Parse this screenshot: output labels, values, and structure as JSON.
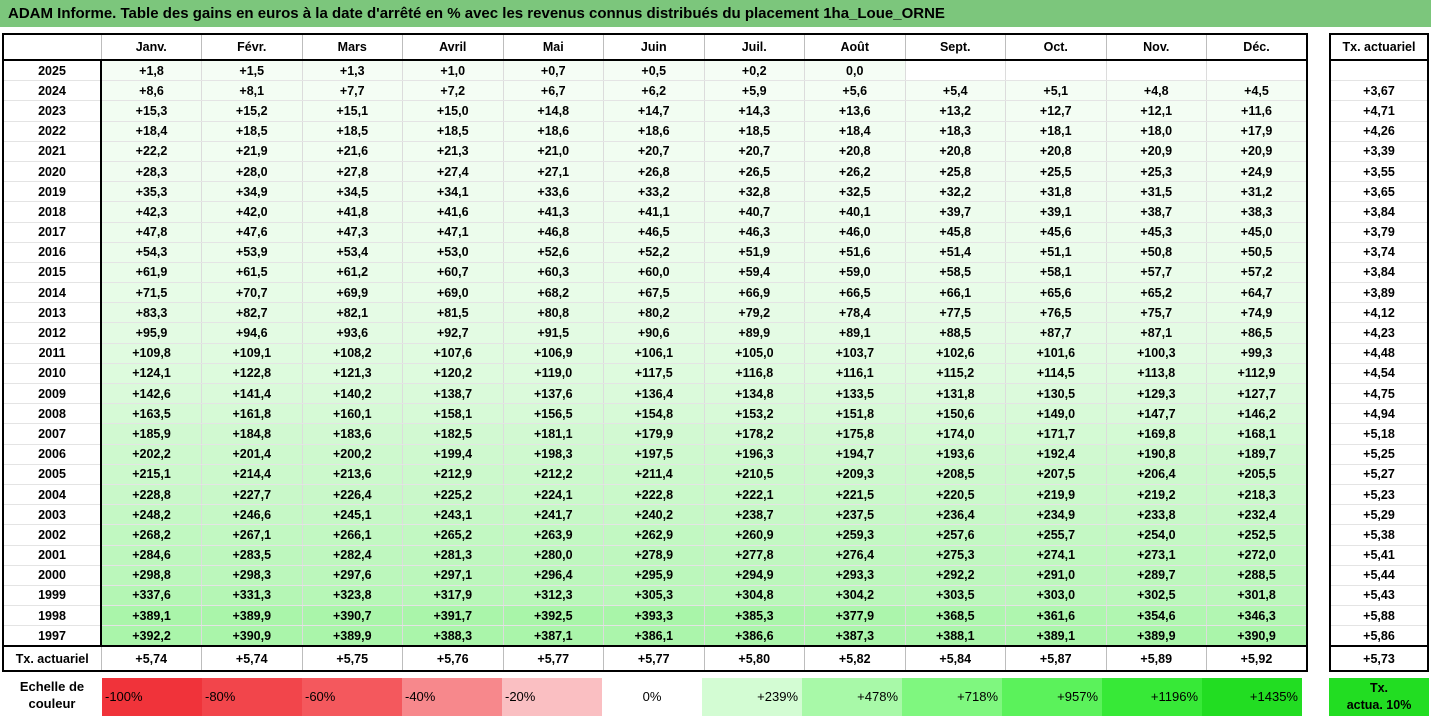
{
  "title": "ADAM Informe. Table des gains en euros à la date d'arrêté en % avec les revenus connus distribués du placement 1ha_Loue_ORNE",
  "months": [
    "Janv.",
    "Févr.",
    "Mars",
    "Avril",
    "Mai",
    "Juin",
    "Juil.",
    "Août",
    "Sept.",
    "Oct.",
    "Nov.",
    "Déc."
  ],
  "side_header": "Tx. actuariel",
  "rows": [
    {
      "year": "2025",
      "vals": [
        "+1,8",
        "+1,5",
        "+1,3",
        "+1,0",
        "+0,7",
        "+0,5",
        "+0,2",
        "0,0",
        "",
        "",
        "",
        ""
      ],
      "act": ""
    },
    {
      "year": "2024",
      "vals": [
        "+8,6",
        "+8,1",
        "+7,7",
        "+7,2",
        "+6,7",
        "+6,2",
        "+5,9",
        "+5,6",
        "+5,4",
        "+5,1",
        "+4,8",
        "+4,5"
      ],
      "act": "+3,67"
    },
    {
      "year": "2023",
      "vals": [
        "+15,3",
        "+15,2",
        "+15,1",
        "+15,0",
        "+14,8",
        "+14,7",
        "+14,3",
        "+13,6",
        "+13,2",
        "+12,7",
        "+12,1",
        "+11,6"
      ],
      "act": "+4,71"
    },
    {
      "year": "2022",
      "vals": [
        "+18,4",
        "+18,5",
        "+18,5",
        "+18,5",
        "+18,6",
        "+18,6",
        "+18,5",
        "+18,4",
        "+18,3",
        "+18,1",
        "+18,0",
        "+17,9"
      ],
      "act": "+4,26"
    },
    {
      "year": "2021",
      "vals": [
        "+22,2",
        "+21,9",
        "+21,6",
        "+21,3",
        "+21,0",
        "+20,7",
        "+20,7",
        "+20,8",
        "+20,8",
        "+20,8",
        "+20,9",
        "+20,9"
      ],
      "act": "+3,39"
    },
    {
      "year": "2020",
      "vals": [
        "+28,3",
        "+28,0",
        "+27,8",
        "+27,4",
        "+27,1",
        "+26,8",
        "+26,5",
        "+26,2",
        "+25,8",
        "+25,5",
        "+25,3",
        "+24,9"
      ],
      "act": "+3,55"
    },
    {
      "year": "2019",
      "vals": [
        "+35,3",
        "+34,9",
        "+34,5",
        "+34,1",
        "+33,6",
        "+33,2",
        "+32,8",
        "+32,5",
        "+32,2",
        "+31,8",
        "+31,5",
        "+31,2"
      ],
      "act": "+3,65"
    },
    {
      "year": "2018",
      "vals": [
        "+42,3",
        "+42,0",
        "+41,8",
        "+41,6",
        "+41,3",
        "+41,1",
        "+40,7",
        "+40,1",
        "+39,7",
        "+39,1",
        "+38,7",
        "+38,3"
      ],
      "act": "+3,84"
    },
    {
      "year": "2017",
      "vals": [
        "+47,8",
        "+47,6",
        "+47,3",
        "+47,1",
        "+46,8",
        "+46,5",
        "+46,3",
        "+46,0",
        "+45,8",
        "+45,6",
        "+45,3",
        "+45,0"
      ],
      "act": "+3,79"
    },
    {
      "year": "2016",
      "vals": [
        "+54,3",
        "+53,9",
        "+53,4",
        "+53,0",
        "+52,6",
        "+52,2",
        "+51,9",
        "+51,6",
        "+51,4",
        "+51,1",
        "+50,8",
        "+50,5"
      ],
      "act": "+3,74"
    },
    {
      "year": "2015",
      "vals": [
        "+61,9",
        "+61,5",
        "+61,2",
        "+60,7",
        "+60,3",
        "+60,0",
        "+59,4",
        "+59,0",
        "+58,5",
        "+58,1",
        "+57,7",
        "+57,2"
      ],
      "act": "+3,84"
    },
    {
      "year": "2014",
      "vals": [
        "+71,5",
        "+70,7",
        "+69,9",
        "+69,0",
        "+68,2",
        "+67,5",
        "+66,9",
        "+66,5",
        "+66,1",
        "+65,6",
        "+65,2",
        "+64,7"
      ],
      "act": "+3,89"
    },
    {
      "year": "2013",
      "vals": [
        "+83,3",
        "+82,7",
        "+82,1",
        "+81,5",
        "+80,8",
        "+80,2",
        "+79,2",
        "+78,4",
        "+77,5",
        "+76,5",
        "+75,7",
        "+74,9"
      ],
      "act": "+4,12"
    },
    {
      "year": "2012",
      "vals": [
        "+95,9",
        "+94,6",
        "+93,6",
        "+92,7",
        "+91,5",
        "+90,6",
        "+89,9",
        "+89,1",
        "+88,5",
        "+87,7",
        "+87,1",
        "+86,5"
      ],
      "act": "+4,23"
    },
    {
      "year": "2011",
      "vals": [
        "+109,8",
        "+109,1",
        "+108,2",
        "+107,6",
        "+106,9",
        "+106,1",
        "+105,0",
        "+103,7",
        "+102,6",
        "+101,6",
        "+100,3",
        "+99,3"
      ],
      "act": "+4,48"
    },
    {
      "year": "2010",
      "vals": [
        "+124,1",
        "+122,8",
        "+121,3",
        "+120,2",
        "+119,0",
        "+117,5",
        "+116,8",
        "+116,1",
        "+115,2",
        "+114,5",
        "+113,8",
        "+112,9"
      ],
      "act": "+4,54"
    },
    {
      "year": "2009",
      "vals": [
        "+142,6",
        "+141,4",
        "+140,2",
        "+138,7",
        "+137,6",
        "+136,4",
        "+134,8",
        "+133,5",
        "+131,8",
        "+130,5",
        "+129,3",
        "+127,7"
      ],
      "act": "+4,75"
    },
    {
      "year": "2008",
      "vals": [
        "+163,5",
        "+161,8",
        "+160,1",
        "+158,1",
        "+156,5",
        "+154,8",
        "+153,2",
        "+151,8",
        "+150,6",
        "+149,0",
        "+147,7",
        "+146,2"
      ],
      "act": "+4,94"
    },
    {
      "year": "2007",
      "vals": [
        "+185,9",
        "+184,8",
        "+183,6",
        "+182,5",
        "+181,1",
        "+179,9",
        "+178,2",
        "+175,8",
        "+174,0",
        "+171,7",
        "+169,8",
        "+168,1"
      ],
      "act": "+5,18"
    },
    {
      "year": "2006",
      "vals": [
        "+202,2",
        "+201,4",
        "+200,2",
        "+199,4",
        "+198,3",
        "+197,5",
        "+196,3",
        "+194,7",
        "+193,6",
        "+192,4",
        "+190,8",
        "+189,7"
      ],
      "act": "+5,25"
    },
    {
      "year": "2005",
      "vals": [
        "+215,1",
        "+214,4",
        "+213,6",
        "+212,9",
        "+212,2",
        "+211,4",
        "+210,5",
        "+209,3",
        "+208,5",
        "+207,5",
        "+206,4",
        "+205,5"
      ],
      "act": "+5,27"
    },
    {
      "year": "2004",
      "vals": [
        "+228,8",
        "+227,7",
        "+226,4",
        "+225,2",
        "+224,1",
        "+222,8",
        "+222,1",
        "+221,5",
        "+220,5",
        "+219,9",
        "+219,2",
        "+218,3"
      ],
      "act": "+5,23"
    },
    {
      "year": "2003",
      "vals": [
        "+248,2",
        "+246,6",
        "+245,1",
        "+243,1",
        "+241,7",
        "+240,2",
        "+238,7",
        "+237,5",
        "+236,4",
        "+234,9",
        "+233,8",
        "+232,4"
      ],
      "act": "+5,29"
    },
    {
      "year": "2002",
      "vals": [
        "+268,2",
        "+267,1",
        "+266,1",
        "+265,2",
        "+263,9",
        "+262,9",
        "+260,9",
        "+259,3",
        "+257,6",
        "+255,7",
        "+254,0",
        "+252,5"
      ],
      "act": "+5,38"
    },
    {
      "year": "2001",
      "vals": [
        "+284,6",
        "+283,5",
        "+282,4",
        "+281,3",
        "+280,0",
        "+278,9",
        "+277,8",
        "+276,4",
        "+275,3",
        "+274,1",
        "+273,1",
        "+272,0"
      ],
      "act": "+5,41"
    },
    {
      "year": "2000",
      "vals": [
        "+298,8",
        "+298,3",
        "+297,6",
        "+297,1",
        "+296,4",
        "+295,9",
        "+294,9",
        "+293,3",
        "+292,2",
        "+291,0",
        "+289,7",
        "+288,5"
      ],
      "act": "+5,44"
    },
    {
      "year": "1999",
      "vals": [
        "+337,6",
        "+331,3",
        "+323,8",
        "+317,9",
        "+312,3",
        "+305,3",
        "+304,8",
        "+304,2",
        "+303,5",
        "+303,0",
        "+302,5",
        "+301,8"
      ],
      "act": "+5,43"
    },
    {
      "year": "1998",
      "vals": [
        "+389,1",
        "+389,9",
        "+390,7",
        "+391,7",
        "+392,5",
        "+393,3",
        "+385,3",
        "+377,9",
        "+368,5",
        "+361,6",
        "+354,6",
        "+346,3"
      ],
      "act": "+5,88"
    },
    {
      "year": "1997",
      "vals": [
        "+392,2",
        "+390,9",
        "+389,9",
        "+388,3",
        "+387,1",
        "+386,1",
        "+386,6",
        "+387,3",
        "+388,1",
        "+389,1",
        "+389,9",
        "+390,9"
      ],
      "act": "+5,86"
    }
  ],
  "footer": {
    "label": "Tx. actuariel",
    "vals": [
      "+5,74",
      "+5,74",
      "+5,75",
      "+5,76",
      "+5,77",
      "+5,77",
      "+5,80",
      "+5,82",
      "+5,84",
      "+5,87",
      "+5,89",
      "+5,92"
    ],
    "act": "+5,73"
  },
  "legend": {
    "label_line1": "Echelle de",
    "label_line2": "couleur",
    "cells": [
      {
        "text": "-100%",
        "color": "#f0333a",
        "kind": "neg"
      },
      {
        "text": "-80%",
        "color": "#f2454b",
        "kind": "neg"
      },
      {
        "text": "-60%",
        "color": "#f4585d",
        "kind": "neg"
      },
      {
        "text": "-40%",
        "color": "#f7888c",
        "kind": "neg"
      },
      {
        "text": "-20%",
        "color": "#fabfc2",
        "kind": "neg"
      },
      {
        "text": "0%",
        "color": "#ffffff",
        "kind": "zero"
      },
      {
        "text": "+239%",
        "color": "#d3fcd3",
        "kind": "pos"
      },
      {
        "text": "+478%",
        "color": "#a8f9a8",
        "kind": "pos"
      },
      {
        "text": "+718%",
        "color": "#7ff77f",
        "kind": "pos"
      },
      {
        "text": "+957%",
        "color": "#5bf25b",
        "kind": "pos"
      },
      {
        "text": "+1196%",
        "color": "#37e937",
        "kind": "pos"
      },
      {
        "text": "+1435%",
        "color": "#22dd22",
        "kind": "pos"
      }
    ],
    "act_line1": "Tx.",
    "act_line2": "actua. 10%"
  }
}
